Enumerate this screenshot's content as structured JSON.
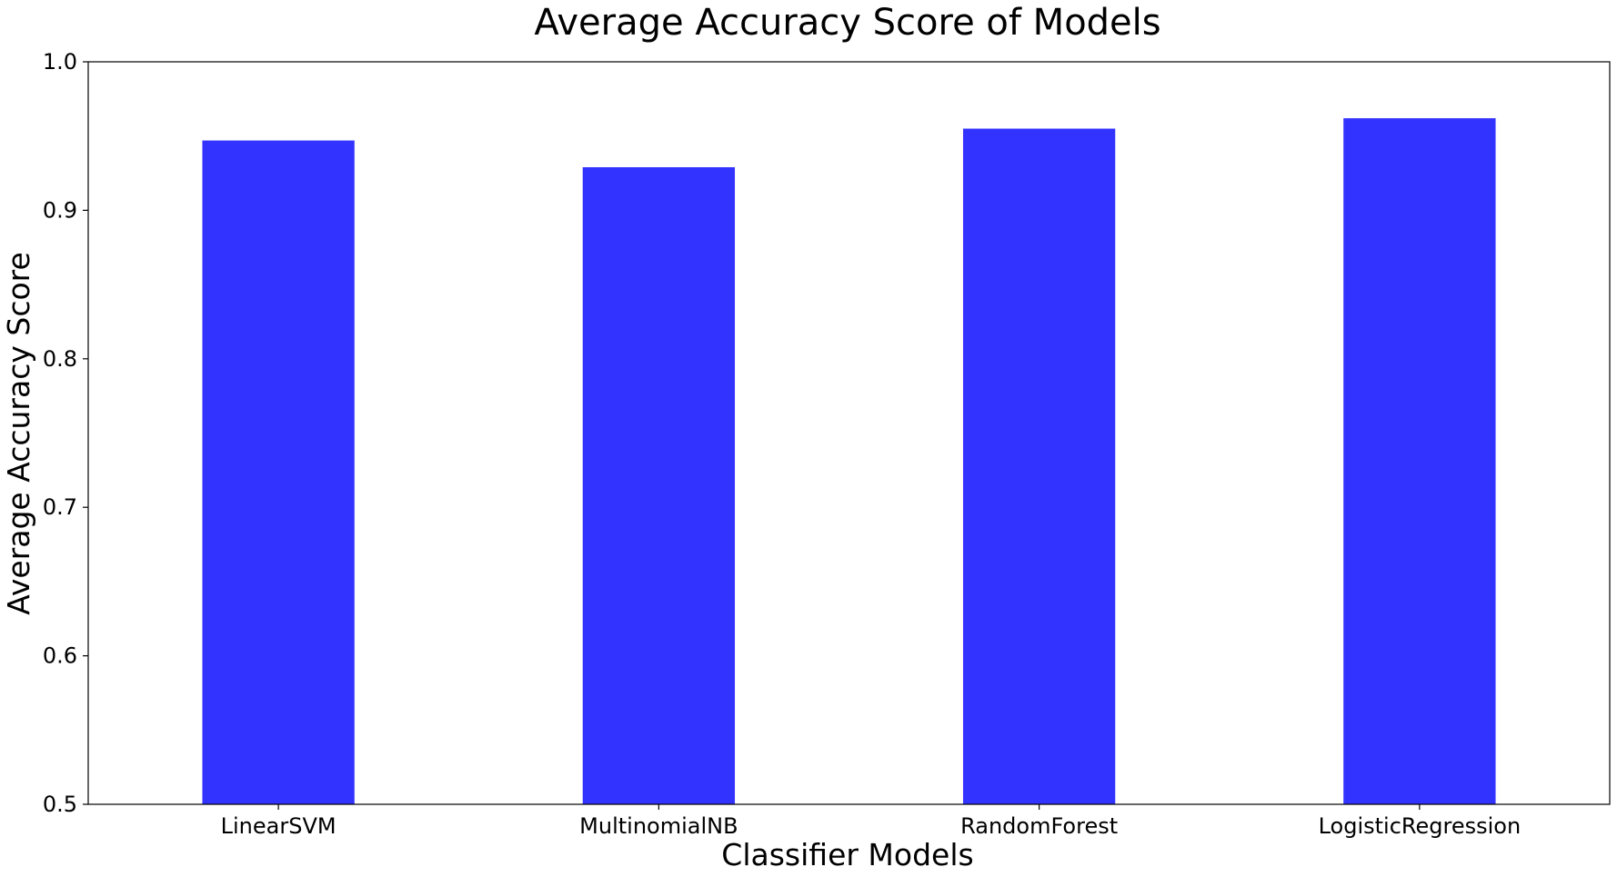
{
  "chart_data": {
    "type": "bar",
    "title": "Average Accuracy Score of Models",
    "xlabel": "Classifier Models",
    "ylabel": "Average Accuracy Score",
    "categories": [
      "LinearSVM",
      "MultinomialNB",
      "RandomForest",
      "LogisticRegression"
    ],
    "values": [
      0.947,
      0.929,
      0.955,
      0.962
    ],
    "ylim": [
      0.5,
      1.0
    ],
    "yticks": [
      "0.5",
      "0.6",
      "0.7",
      "0.8",
      "0.9",
      "1.0"
    ],
    "grid": false,
    "legend": "none",
    "bar_color": "#3333ff"
  }
}
